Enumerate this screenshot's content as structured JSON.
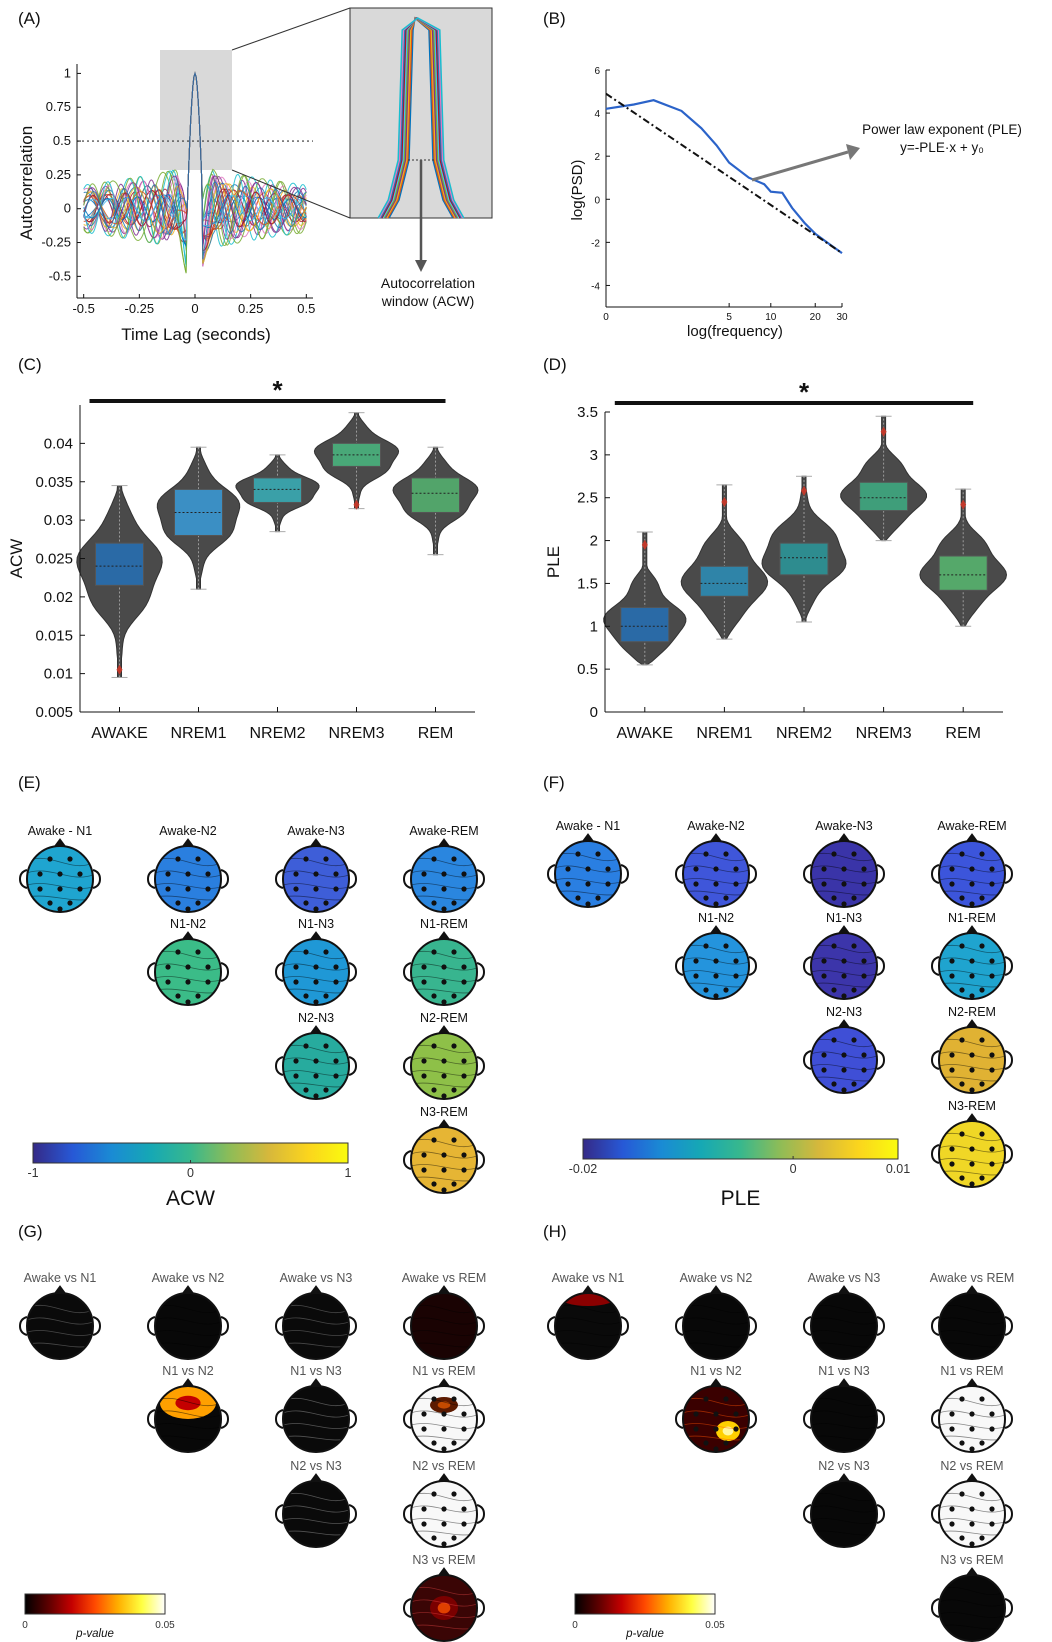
{
  "panels": {
    "A": {
      "label": "(A)",
      "xlabel": "Time Lag (seconds)",
      "ylabel": "Autocorrelation",
      "xticks": [
        "-0.5",
        "-0.25",
        "0",
        "0.25",
        "0.5"
      ],
      "yticks": [
        "1",
        "0.75",
        "0.5",
        "0.25",
        "0",
        "-0.25",
        "-0.5"
      ],
      "annotation": [
        "Autocorrelation",
        "window (ACW)"
      ]
    },
    "B": {
      "label": "(B)",
      "xlabel": "log(frequency)",
      "ylabel": "log(PSD)",
      "xticks": [
        "0",
        "5",
        "10",
        "20",
        "30"
      ],
      "yticks": [
        "6",
        "4",
        "2",
        "0",
        "-2",
        "-4"
      ],
      "annotation": [
        "Power law exponent (PLE)",
        "y=-PLE·x + y₀"
      ]
    },
    "C": {
      "label": "(C)",
      "ylabel": "ACW",
      "star": "*",
      "yticks": [
        "0.04",
        "0.035",
        "0.03",
        "0.025",
        "0.02",
        "0.015",
        "0.01",
        "0.005"
      ]
    },
    "D": {
      "label": "(D)",
      "ylabel": "PLE",
      "star": "*",
      "yticks": [
        "3.5",
        "3",
        "2.5",
        "2",
        "1.5",
        "1",
        "0.5",
        "0"
      ]
    },
    "E": {
      "label": "(E)",
      "cbar_label": "ACW",
      "cbar_ticks": [
        "-1",
        "0",
        "1"
      ],
      "titles": [
        "Awake - N1",
        "Awake-N2",
        "Awake-N3",
        "Awake-REM",
        "N1-N2",
        "N1-N3",
        "N1-REM",
        "N2-N3",
        "N2-REM",
        "N3-REM"
      ]
    },
    "F": {
      "label": "(F)",
      "cbar_label": "PLE",
      "cbar_ticks": [
        "-0.02",
        "0",
        "0.01"
      ],
      "titles": [
        "Awake - N1",
        "Awake-N2",
        "Awake-N3",
        "Awake-REM",
        "N1-N2",
        "N1-N3",
        "N1-REM",
        "N2-N3",
        "N2-REM",
        "N3-REM"
      ]
    },
    "G": {
      "label": "(G)",
      "cbar_label": "p-value",
      "cbar_ticks": [
        "0",
        "0.05"
      ],
      "titles": [
        "Awake vs N1",
        "Awake vs N2",
        "Awake vs N3",
        "Awake vs REM",
        "N1 vs N2",
        "N1 vs N3",
        "N1 vs REM",
        "N2 vs N3",
        "N2 vs REM",
        "N3 vs REM"
      ]
    },
    "H": {
      "label": "(H)",
      "cbar_label": "p-value",
      "cbar_ticks": [
        "0",
        "0.05"
      ],
      "titles": [
        "Awake vs N1",
        "Awake vs N2",
        "Awake vs N3",
        "Awake vs REM",
        "N1 vs N2",
        "N1 vs N3",
        "N1 vs REM",
        "N2 vs N3",
        "N2 vs REM",
        "N3 vs REM"
      ]
    }
  },
  "chart_data": [
    {
      "panel": "C",
      "type": "violin",
      "categories": [
        "AWAKE",
        "NREM1",
        "NREM2",
        "NREM3",
        "REM"
      ],
      "ylabel": "ACW",
      "ylim": [
        0.005,
        0.045
      ],
      "series": [
        {
          "name": "AWAKE",
          "min": 0.0095,
          "max": 0.0345,
          "q1": 0.0215,
          "median": 0.024,
          "q3": 0.027,
          "outliers": [
            0.0105
          ],
          "color": "#2a6aa6"
        },
        {
          "name": "NREM1",
          "min": 0.021,
          "max": 0.0395,
          "q1": 0.028,
          "median": 0.031,
          "q3": 0.034,
          "outliers": [],
          "color": "#3b8fc4"
        },
        {
          "name": "NREM2",
          "min": 0.0285,
          "max": 0.0385,
          "q1": 0.0323,
          "median": 0.034,
          "q3": 0.0355,
          "outliers": [],
          "color": "#3aa0a8"
        },
        {
          "name": "NREM3",
          "min": 0.0315,
          "max": 0.044,
          "q1": 0.037,
          "median": 0.0385,
          "q3": 0.04,
          "outliers": [
            0.032
          ],
          "color": "#49a878"
        },
        {
          "name": "REM",
          "min": 0.0255,
          "max": 0.0395,
          "q1": 0.031,
          "median": 0.0335,
          "q3": 0.0355,
          "outliers": [],
          "color": "#52a46a"
        }
      ]
    },
    {
      "panel": "D",
      "type": "violin",
      "categories": [
        "AWAKE",
        "NREM1",
        "NREM2",
        "NREM3",
        "REM"
      ],
      "ylabel": "PLE",
      "ylim": [
        0,
        3.5
      ],
      "series": [
        {
          "name": "AWAKE",
          "min": 0.55,
          "max": 2.1,
          "q1": 0.82,
          "median": 1.0,
          "q3": 1.22,
          "outliers": [
            1.95
          ],
          "color": "#2a6aa6"
        },
        {
          "name": "NREM1",
          "min": 0.85,
          "max": 2.65,
          "q1": 1.35,
          "median": 1.5,
          "q3": 1.7,
          "outliers": [
            2.45
          ],
          "color": "#2f84a8"
        },
        {
          "name": "NREM2",
          "min": 1.05,
          "max": 2.75,
          "q1": 1.6,
          "median": 1.8,
          "q3": 1.97,
          "outliers": [
            2.58
          ],
          "color": "#2e8c8f"
        },
        {
          "name": "NREM3",
          "min": 2.0,
          "max": 3.45,
          "q1": 2.35,
          "median": 2.5,
          "q3": 2.68,
          "outliers": [
            3.27
          ],
          "color": "#3f9e7a"
        },
        {
          "name": "REM",
          "min": 1.0,
          "max": 2.6,
          "q1": 1.42,
          "median": 1.6,
          "q3": 1.82,
          "outliers": [
            2.42
          ],
          "color": "#55a86a"
        }
      ]
    },
    {
      "panel": "B",
      "type": "line",
      "xlabel": "log(frequency)",
      "ylabel": "log(PSD)",
      "ylim": [
        -5,
        6
      ],
      "series": [
        {
          "name": "PSD",
          "color": "#2b63c9",
          "x": [
            0,
            0.5,
            1,
            2,
            3,
            4,
            5,
            7,
            9,
            10,
            12,
            14,
            17,
            20,
            25,
            30
          ],
          "y": [
            4.2,
            4.4,
            4.6,
            4.1,
            3.3,
            2.5,
            1.7,
            1.0,
            0.7,
            0.35,
            0.3,
            -0.4,
            -1.1,
            -1.6,
            -2.1,
            -2.5
          ]
        },
        {
          "name": "fit",
          "color": "#111111",
          "x": [
            0,
            30
          ],
          "y": [
            4.9,
            -2.5
          ]
        }
      ]
    }
  ]
}
